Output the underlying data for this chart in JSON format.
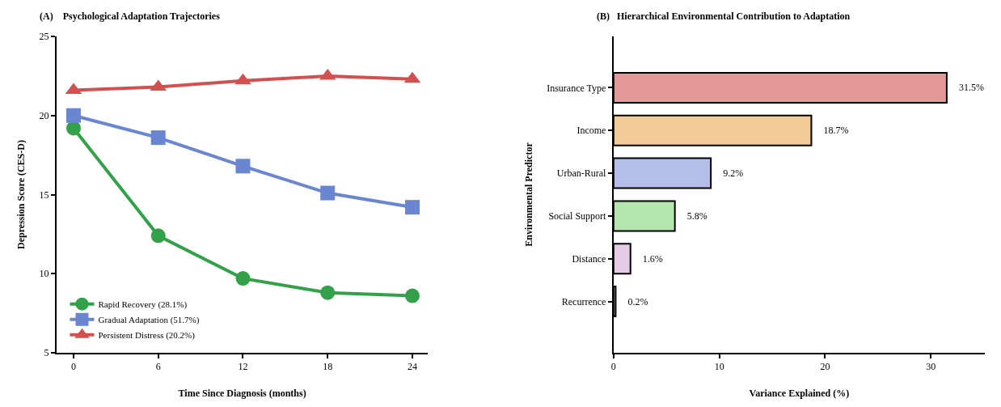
{
  "chart_data": [
    {
      "type": "line",
      "title": "(A)    Psychological Adaptation Trajectories",
      "xlabel": "Time Since Diagnosis (months)",
      "ylabel": "Depression Score (CES-D)",
      "x": [
        0,
        6,
        12,
        18,
        24
      ],
      "xlim": [
        -1.2,
        25.1
      ],
      "xticks": [
        0,
        6,
        12,
        18,
        24
      ],
      "ylim": [
        5,
        25
      ],
      "yticks": [
        5,
        10,
        15,
        20,
        25
      ],
      "legend": "bottom left",
      "line_style": "solid",
      "series": [
        {
          "name": "Rapid Recovery (28.1%)",
          "color": "#33a04a",
          "marker": "circle",
          "values": [
            19.2,
            12.4,
            9.7,
            8.8,
            8.6
          ]
        },
        {
          "name": "Gradual Adaptation (51.7%)",
          "color": "#6a86d0",
          "marker": "square",
          "values": [
            20.0,
            18.6,
            16.8,
            15.1,
            14.2
          ]
        },
        {
          "name": "Persistent Distress (20.2%)",
          "color": "#d35050",
          "marker": "triangle",
          "values": [
            21.6,
            21.8,
            22.2,
            22.5,
            22.3
          ]
        }
      ]
    },
    {
      "type": "bar",
      "orientation": "horizontal",
      "title": "(B)   Hierarchical Environmental Contribution to Adaptation",
      "xlabel": "Variance Explained (%)",
      "ylabel": "Environmental Predictor",
      "categories": [
        "Insurance Type",
        "Income",
        "Urban-Rural",
        "Social Support",
        "Distance",
        "Recurrence"
      ],
      "values": [
        31.5,
        18.7,
        9.2,
        5.8,
        1.6,
        0.2
      ],
      "value_labels": [
        "31.5%",
        "18.7%",
        "9.2%",
        "5.8%",
        "1.6%",
        "0.2%"
      ],
      "colors": [
        "#e49898",
        "#f2cb98",
        "#b3bfe8",
        "#b5e6b0",
        "#e6cbe6",
        "#c8c8c8"
      ],
      "xlim": [
        0,
        35.1
      ],
      "xticks": [
        0,
        10,
        20,
        30
      ]
    }
  ]
}
